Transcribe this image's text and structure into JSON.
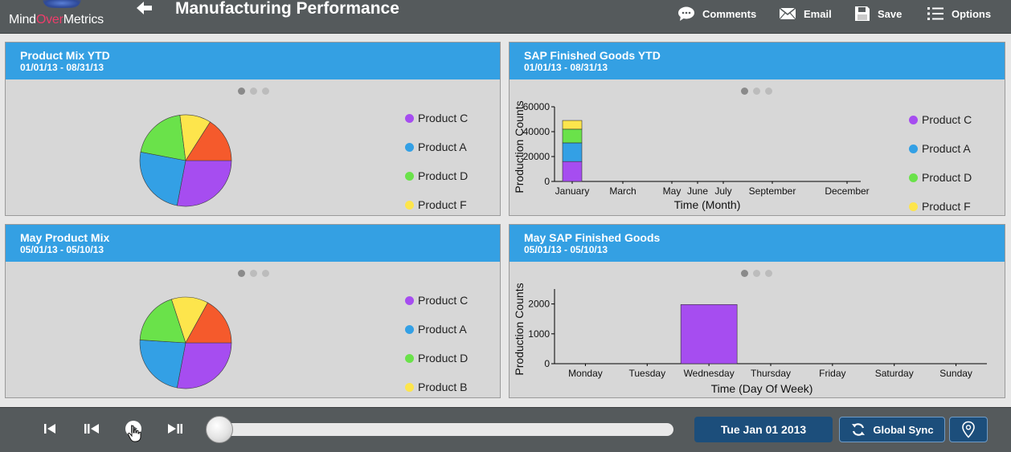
{
  "header": {
    "logo_part1": "Mind",
    "logo_part2": "Over",
    "logo_part3": "Metrics",
    "title": "Manufacturing Performance",
    "toolbar": [
      {
        "label": "Comments",
        "icon": "comment-icon"
      },
      {
        "label": "Email",
        "icon": "envelope-icon"
      },
      {
        "label": "Save",
        "icon": "floppy-icon"
      },
      {
        "label": "Options",
        "icon": "list-icon"
      }
    ]
  },
  "colors": {
    "header_bg": "#555a5c",
    "panel_header": "#34a0e3",
    "panel_body": "#d7d7d7",
    "Product C": "#a64df0",
    "Product A": "#33a0e5",
    "Product D": "#6ae24a",
    "Product F": "#fde54c",
    "Product B": "#fde54c",
    "slice_orange": "#f55a2c",
    "button_dark": "#1c4e7b"
  },
  "panels": [
    {
      "title": "Product Mix YTD",
      "date_range": "01/01/13 - 08/31/13",
      "legend": [
        "Product C",
        "Product A",
        "Product D",
        "Product F"
      ]
    },
    {
      "title": "SAP Finished Goods YTD",
      "date_range": "01/01/13 - 08/31/13",
      "legend": [
        "Product C",
        "Product A",
        "Product D",
        "Product F"
      ]
    },
    {
      "title": "May Product Mix",
      "date_range": "05/01/13 - 05/10/13",
      "legend": [
        "Product C",
        "Product A",
        "Product D",
        "Product B"
      ]
    },
    {
      "title": "May SAP Finished Goods",
      "date_range": "05/01/13 - 05/10/13",
      "legend": []
    }
  ],
  "chart_data": [
    {
      "type": "pie",
      "title": "Product Mix YTD",
      "slices": [
        {
          "label": "Product C",
          "value": 28
        },
        {
          "label": "Product A",
          "value": 25
        },
        {
          "label": "Product D",
          "value": 20
        },
        {
          "label": "Product F",
          "value": 11
        },
        {
          "label": "",
          "value": 16
        }
      ]
    },
    {
      "type": "bar",
      "stacked": true,
      "title": "SAP Finished Goods YTD",
      "xlabel": "Time (Month)",
      "ylabel": "Production Counts",
      "ylim": [
        0,
        60000
      ],
      "yticks": [
        0,
        20000,
        40000,
        60000
      ],
      "categories": [
        "January"
      ],
      "tick_labels": [
        "January",
        "March",
        "May",
        "June",
        "July",
        "September",
        "December"
      ],
      "series": [
        {
          "name": "Product C",
          "values": [
            16000
          ]
        },
        {
          "name": "Product A",
          "values": [
            15000
          ]
        },
        {
          "name": "Product D",
          "values": [
            11000
          ]
        },
        {
          "name": "Product F",
          "values": [
            7000
          ]
        }
      ]
    },
    {
      "type": "pie",
      "title": "May Product Mix",
      "slices": [
        {
          "label": "Product C",
          "value": 28
        },
        {
          "label": "Product A",
          "value": 23
        },
        {
          "label": "Product D",
          "value": 19
        },
        {
          "label": "Product B",
          "value": 13
        },
        {
          "label": "",
          "value": 17
        }
      ]
    },
    {
      "type": "bar",
      "title": "May SAP Finished Goods",
      "xlabel": "Time (Day Of Week)",
      "ylabel": "Production Counts",
      "ylim": [
        0,
        2500
      ],
      "yticks": [
        0,
        1000,
        2000
      ],
      "categories": [
        "Monday",
        "Tuesday",
        "Wednesday",
        "Thursday",
        "Friday",
        "Saturday",
        "Sunday"
      ],
      "series": [
        {
          "name": "Product C",
          "values": [
            0,
            0,
            1980,
            0,
            0,
            0,
            0
          ]
        }
      ]
    }
  ],
  "footer": {
    "date": "Tue Jan 01 2013",
    "sync_label": "Global Sync",
    "controls": [
      "skip-start-icon",
      "step-back-icon",
      "play-icon",
      "step-forward-icon",
      "location-pin-icon"
    ]
  }
}
